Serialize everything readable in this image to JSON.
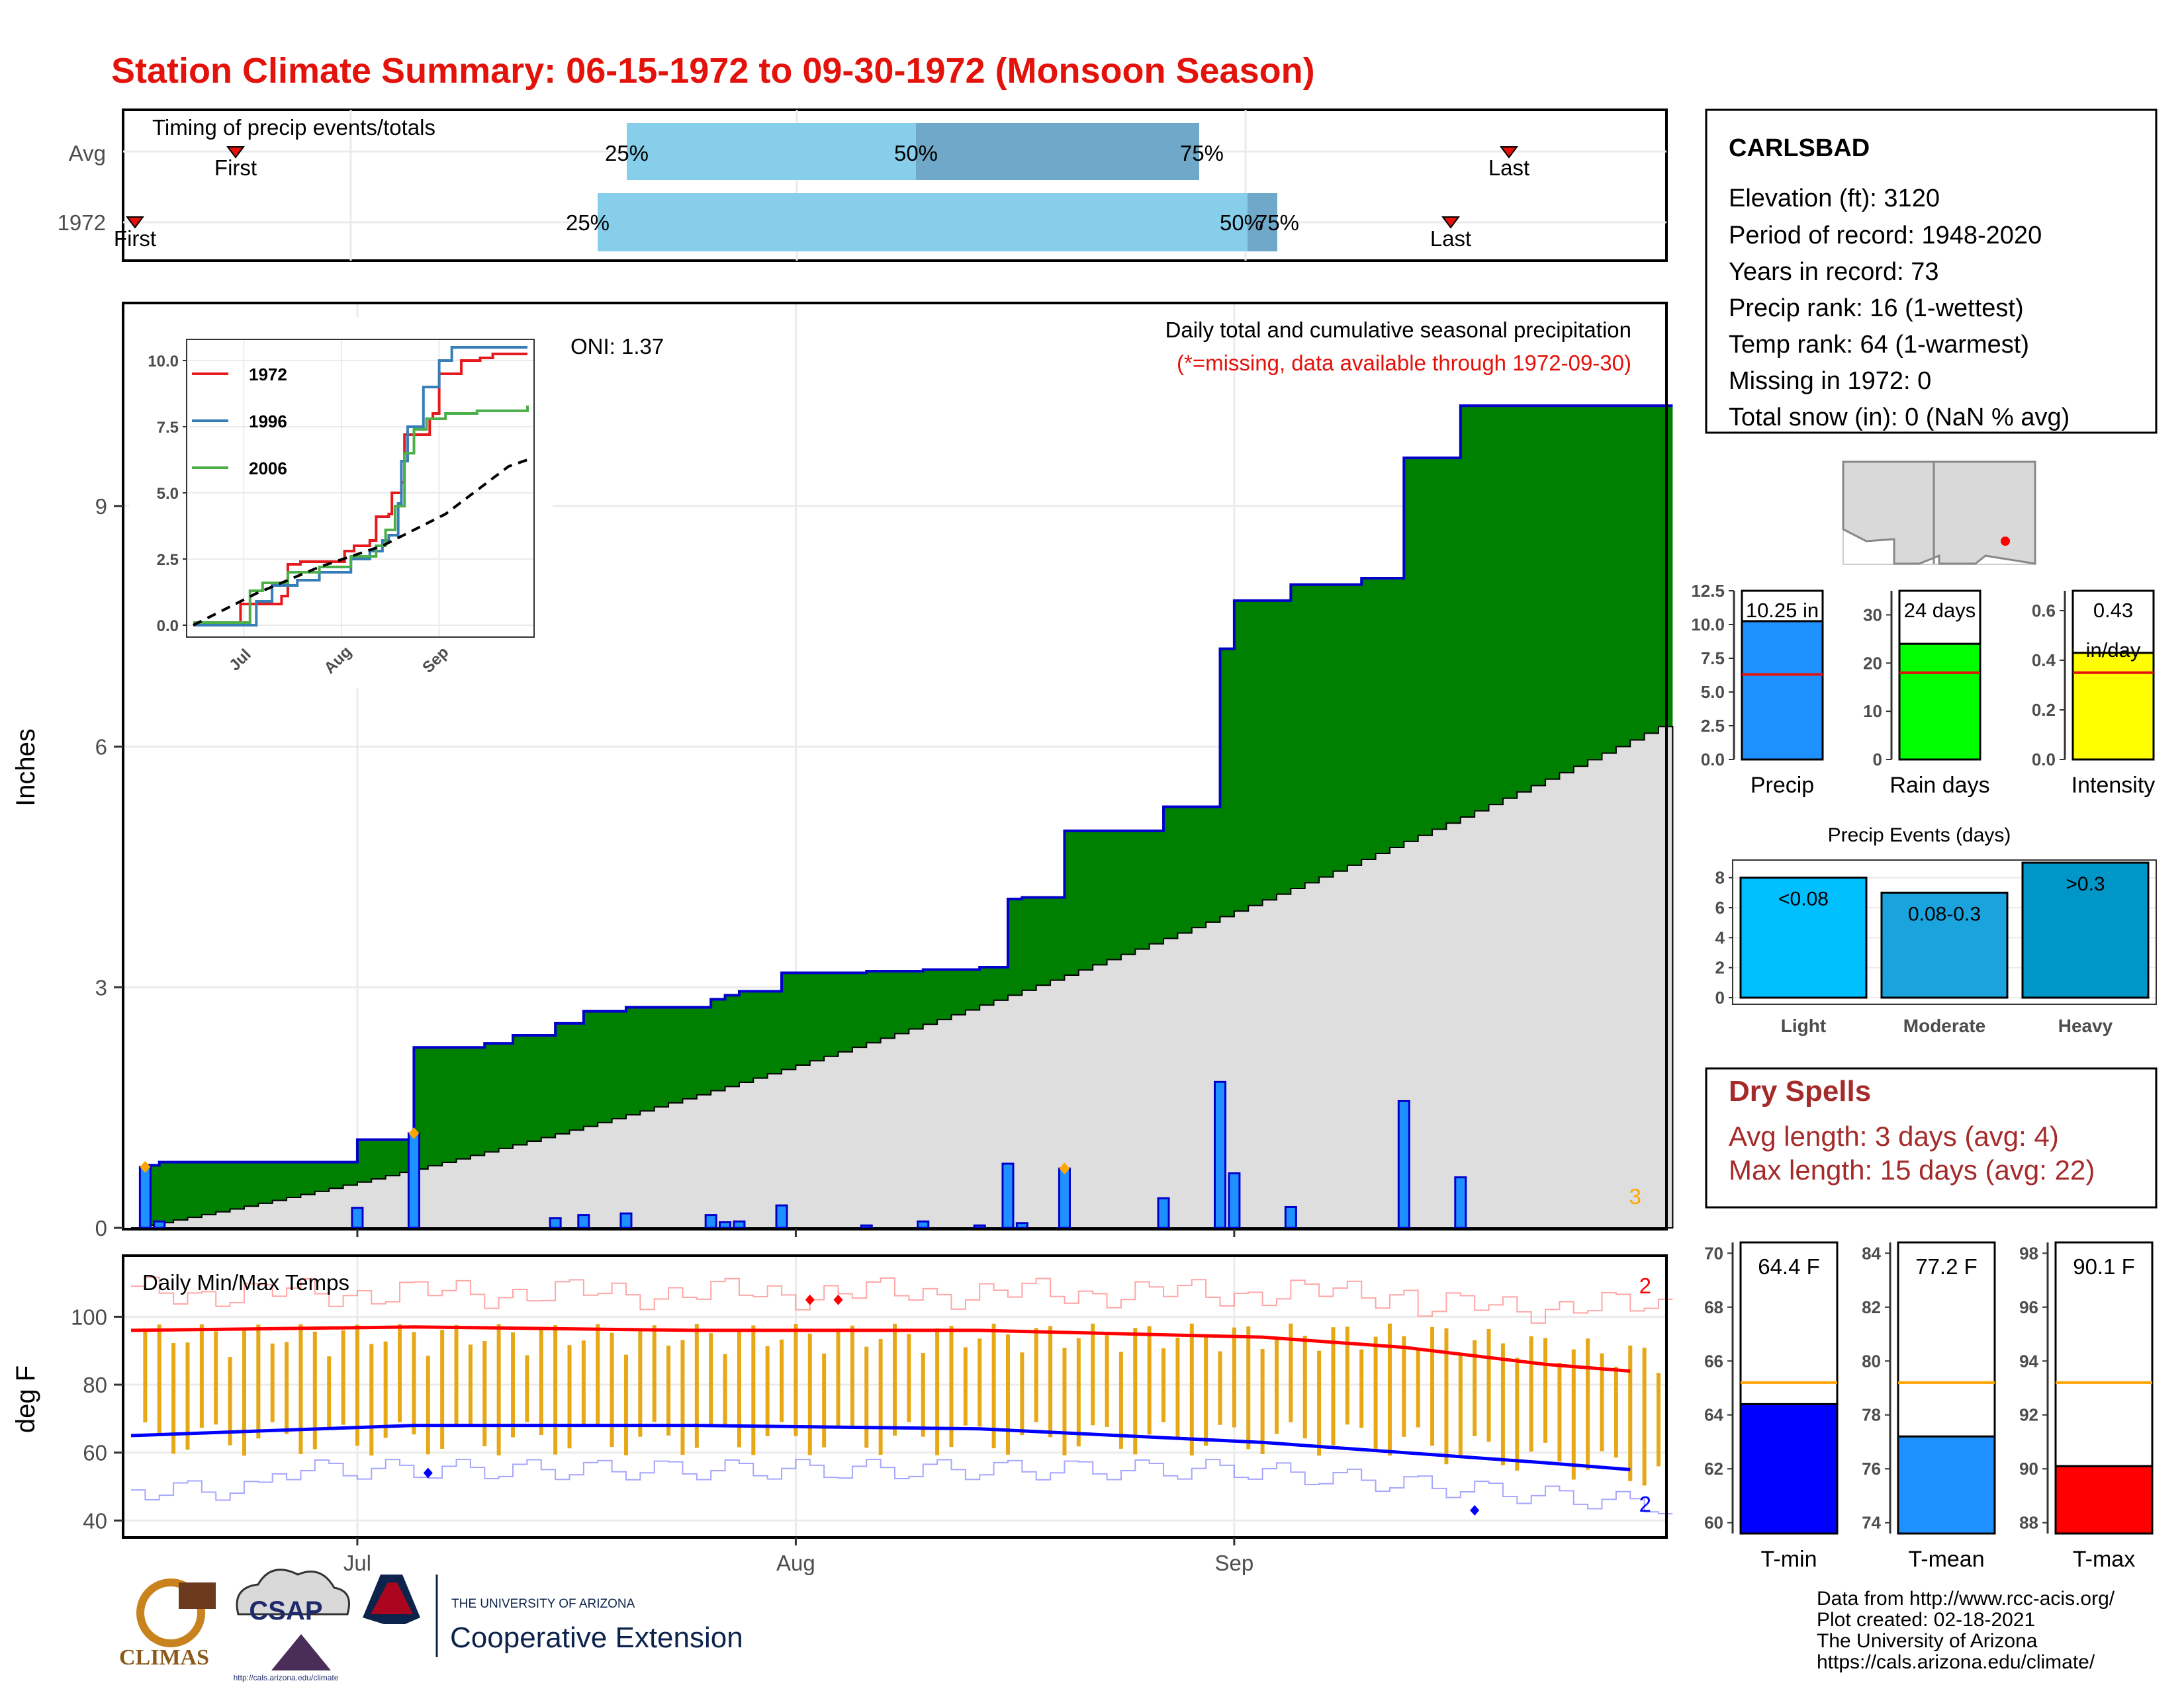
{
  "title": "Station Climate Summary: 06-15-1972 to 09-30-1972 (Monsoon Season)",
  "colors": {
    "title": "#e3120b",
    "surplus": "#008000",
    "deficit": "#8b5a1b",
    "climo": "#dedede",
    "bars": "#1e90ff",
    "bar_border": "#0000cd",
    "quartile_light": "#87ceeb",
    "quartile_dark": "#6fa8c8",
    "tmax": "#ff0000",
    "tmin": "#0000ff",
    "temp_bar": "#e6a817",
    "precip_bar": "#1e90ff",
    "raindays_bar": "#00ff00",
    "intensity_bar": "#ffff00",
    "event_light": "#00bfff",
    "event_moderate": "#1aa3dc",
    "event_heavy": "#0096c8",
    "dry_spell": "#a52a2a"
  },
  "timing_panel": {
    "title": "Timing of precip events/totals",
    "rows": [
      {
        "label": "Avg",
        "first": "First",
        "q25": "25%",
        "q50": "50%",
        "q75": "75%",
        "last": "Last"
      },
      {
        "label": "1972",
        "first": "First",
        "q25": "25%",
        "q50": "50%",
        "q75": "75%",
        "last": "Last"
      }
    ]
  },
  "main_panel": {
    "y_label": "Inches",
    "y_ticks": [
      "0",
      "3",
      "6",
      "9"
    ],
    "oni": "ONI: 1.37",
    "desc": "Daily total and cumulative seasonal precipitation",
    "missing_note": "(*=missing, data available through 1972-09-30)",
    "count": "3"
  },
  "inset": {
    "y_ticks": [
      "0.0",
      "2.5",
      "5.0",
      "7.5",
      "10.0"
    ],
    "x_ticks": [
      "Jul",
      "Aug",
      "Sep"
    ],
    "legend": [
      {
        "name": "1972",
        "color": "#e41a1c"
      },
      {
        "name": "1996",
        "color": "#377eb8"
      },
      {
        "name": "2006",
        "color": "#4daf4a"
      }
    ]
  },
  "temp_panel": {
    "title": "Daily Min/Max Temps",
    "y_label": "deg F",
    "y_ticks": [
      "40",
      "60",
      "80",
      "100"
    ],
    "x_ticks": [
      "Jul",
      "Aug",
      "Sep"
    ],
    "max_count": "2",
    "min_count": "2"
  },
  "station": {
    "name": "CARLSBAD",
    "lines": [
      "Elevation (ft): 3120",
      "Period of record: 1948-2020",
      "Years in record: 73",
      "Precip rank: 16 (1-wettest)",
      "Temp rank: 64 (1-warmest)",
      "Missing in 1972: 0",
      "Total snow (in): 0 (NaN % avg)"
    ]
  },
  "mini_bars": [
    {
      "label": "Precip",
      "value_text": "10.25 in",
      "ticks": [
        "0.0",
        "2.5",
        "5.0",
        "7.5",
        "10.0",
        "12.5"
      ]
    },
    {
      "label": "Rain days",
      "value_text": "24 days",
      "ticks": [
        "0",
        "10",
        "20",
        "30"
      ]
    },
    {
      "label": "Intensity",
      "value_text": "0.43",
      "value_text2": "in/day",
      "ticks": [
        "0.0",
        "0.2",
        "0.4",
        "0.6"
      ]
    }
  ],
  "events": {
    "title": "Precip Events (days)",
    "ticks": [
      "0",
      "2",
      "4",
      "6",
      "8"
    ],
    "categories": [
      "Light",
      "Moderate",
      "Heavy"
    ],
    "labels": [
      "<0.08",
      "0.08-0.3",
      ">0.3"
    ]
  },
  "dry_spells": {
    "title": "Dry Spells",
    "avg": "Avg length: 3 days (avg: 4)",
    "max": "Max length: 15 days (avg: 22)"
  },
  "temp_bars": [
    {
      "label": "T-min",
      "value_text": "64.4 F",
      "ticks": [
        "60",
        "62",
        "64",
        "66",
        "68",
        "70"
      ]
    },
    {
      "label": "T-mean",
      "value_text": "77.2 F",
      "ticks": [
        "74",
        "76",
        "78",
        "80",
        "82",
        "84"
      ]
    },
    {
      "label": "T-max",
      "value_text": "90.1 F",
      "ticks": [
        "88",
        "90",
        "92",
        "94",
        "96",
        "98"
      ]
    }
  ],
  "footer": {
    "lines": [
      "Data from http://www.rcc-acis.org/",
      "Plot created: 02-18-2021",
      "The University of Arizona",
      "https://cals.arizona.edu/climate/"
    ],
    "logo_climas": "CLIMAS",
    "logo_csap": "CSAP",
    "csap_url": "http://cals.arizona.edu/climate",
    "ua_small": "THE UNIVERSITY OF ARIZONA",
    "ua_big": "Cooperative Extension"
  },
  "chart_data": [
    {
      "type": "bar",
      "title": "Timing of precip events/totals",
      "categories": [
        "Avg",
        "1972"
      ],
      "series": [
        {
          "name": "First",
          "values": [
            "06-30",
            "06-16"
          ]
        },
        {
          "name": "25%",
          "values": [
            "07-28",
            "07-25"
          ]
        },
        {
          "name": "50%",
          "values": [
            "08-17",
            "09-01"
          ]
        },
        {
          "name": "75%",
          "values": [
            "09-05",
            "09-03"
          ]
        },
        {
          "name": "Last",
          "values": [
            "09-25",
            "09-17"
          ]
        }
      ]
    },
    {
      "type": "area",
      "title": "Daily total and cumulative seasonal precipitation",
      "ylabel": "Inches",
      "ylim": [
        0,
        11.3
      ],
      "x_range": [
        "06-15",
        "09-30"
      ],
      "x": [
        "06-16",
        "06-17",
        "06-29",
        "07-01",
        "07-05",
        "07-10",
        "07-12",
        "07-15",
        "07-17",
        "07-20",
        "07-26",
        "07-27",
        "07-28",
        "07-31",
        "08-06",
        "08-10",
        "08-14",
        "08-16",
        "08-17",
        "08-20",
        "08-27",
        "08-31",
        "09-01",
        "09-02",
        "09-05",
        "09-10",
        "09-13",
        "09-17"
      ],
      "daily_precip": [
        0.76,
        0.08,
        0,
        0.25,
        1.18,
        0,
        0,
        0.12,
        0.16,
        0.18,
        0.16,
        0.07,
        0.08,
        0.28,
        0.03,
        0.08,
        0.03,
        0.8,
        0.06,
        0.74,
        0.37,
        1.82,
        0.68,
        0,
        0.26,
        0,
        1.58,
        0.63
      ],
      "cumulative_1972": [
        0.78,
        0.82,
        0.82,
        1.1,
        2.25,
        2.3,
        2.4,
        2.55,
        2.7,
        2.75,
        2.85,
        2.9,
        2.95,
        3.18,
        3.2,
        3.22,
        3.25,
        4.1,
        4.12,
        4.95,
        5.25,
        7.22,
        7.82,
        7.82,
        8.02,
        8.1,
        9.6,
        10.25
      ],
      "cumulative_avg_end": 6.25,
      "y_ticks": [
        0,
        3,
        6,
        9
      ]
    },
    {
      "type": "line",
      "title": "",
      "x_ticks": [
        "Jul",
        "Aug",
        "Sep"
      ],
      "ylim": [
        0,
        10.5
      ],
      "series": [
        {
          "name": "1972",
          "x": [
            0,
            15,
            17,
            28,
            30,
            34,
            48,
            51,
            56,
            58,
            62,
            63,
            66,
            67,
            75,
            76,
            78,
            85,
            91,
            95,
            99,
            106
          ],
          "values": [
            0.1,
            0.8,
            0.8,
            1.1,
            2.3,
            2.4,
            2.8,
            3.0,
            3.2,
            4.1,
            4.2,
            5.0,
            5.4,
            7.2,
            7.8,
            8.0,
            9.5,
            10.0,
            10.1,
            10.25,
            10.25,
            10.25
          ]
        },
        {
          "name": "1996",
          "x": [
            0,
            20,
            25,
            33,
            40,
            50,
            56,
            60,
            62,
            65,
            66,
            68,
            73,
            78,
            82,
            86,
            90,
            96,
            106
          ],
          "values": [
            0.0,
            0.9,
            1.5,
            1.7,
            2.0,
            2.5,
            2.8,
            3.2,
            3.4,
            4.6,
            6.2,
            7.5,
            9.0,
            10.0,
            10.5,
            10.5,
            10.5,
            10.5,
            10.5
          ]
        },
        {
          "name": "2006",
          "x": [
            0,
            18,
            22,
            30,
            40,
            50,
            58,
            61,
            64,
            67,
            70,
            74,
            80,
            90,
            106
          ],
          "values": [
            0.1,
            1.3,
            1.6,
            2.0,
            2.2,
            2.6,
            3.0,
            3.6,
            4.5,
            6.5,
            7.4,
            7.8,
            8.0,
            8.1,
            8.3
          ]
        },
        {
          "name": "avg",
          "x": [
            0,
            20,
            40,
            60,
            80,
            100,
            106
          ],
          "values": [
            0.0,
            1.2,
            2.2,
            3.0,
            4.2,
            6.0,
            6.25
          ]
        }
      ]
    },
    {
      "type": "line",
      "title": "Daily Min/Max Temps",
      "ylabel": "deg F",
      "ylim": [
        35,
        118
      ],
      "x_ticks": [
        "Jul",
        "Aug",
        "Sep"
      ],
      "series": [
        {
          "name": "avg Tmax",
          "x": [
            0,
            20,
            40,
            60,
            80,
            90,
            100,
            106
          ],
          "values": [
            96,
            97,
            96,
            96,
            94,
            91,
            86,
            84
          ]
        },
        {
          "name": "avg Tmin",
          "x": [
            0,
            20,
            40,
            60,
            80,
            90,
            100,
            106
          ],
          "values": [
            65,
            68,
            68,
            67,
            63,
            60,
            57,
            55
          ]
        }
      ]
    },
    {
      "type": "bar",
      "categories": [
        "Precip",
        "Rain days",
        "Intensity"
      ],
      "values": [
        10.25,
        24,
        0.43
      ],
      "averages": [
        6.3,
        18,
        0.35
      ]
    },
    {
      "type": "bar",
      "title": "Precip Events (days)",
      "categories": [
        "Light",
        "Moderate",
        "Heavy"
      ],
      "values": [
        8,
        7,
        9
      ],
      "ylim": [
        0,
        9
      ]
    },
    {
      "type": "bar",
      "categories": [
        "T-min",
        "T-mean",
        "T-max"
      ],
      "values": [
        64.4,
        77.2,
        90.1
      ],
      "averages": [
        65.2,
        79.2,
        93.2
      ]
    }
  ]
}
